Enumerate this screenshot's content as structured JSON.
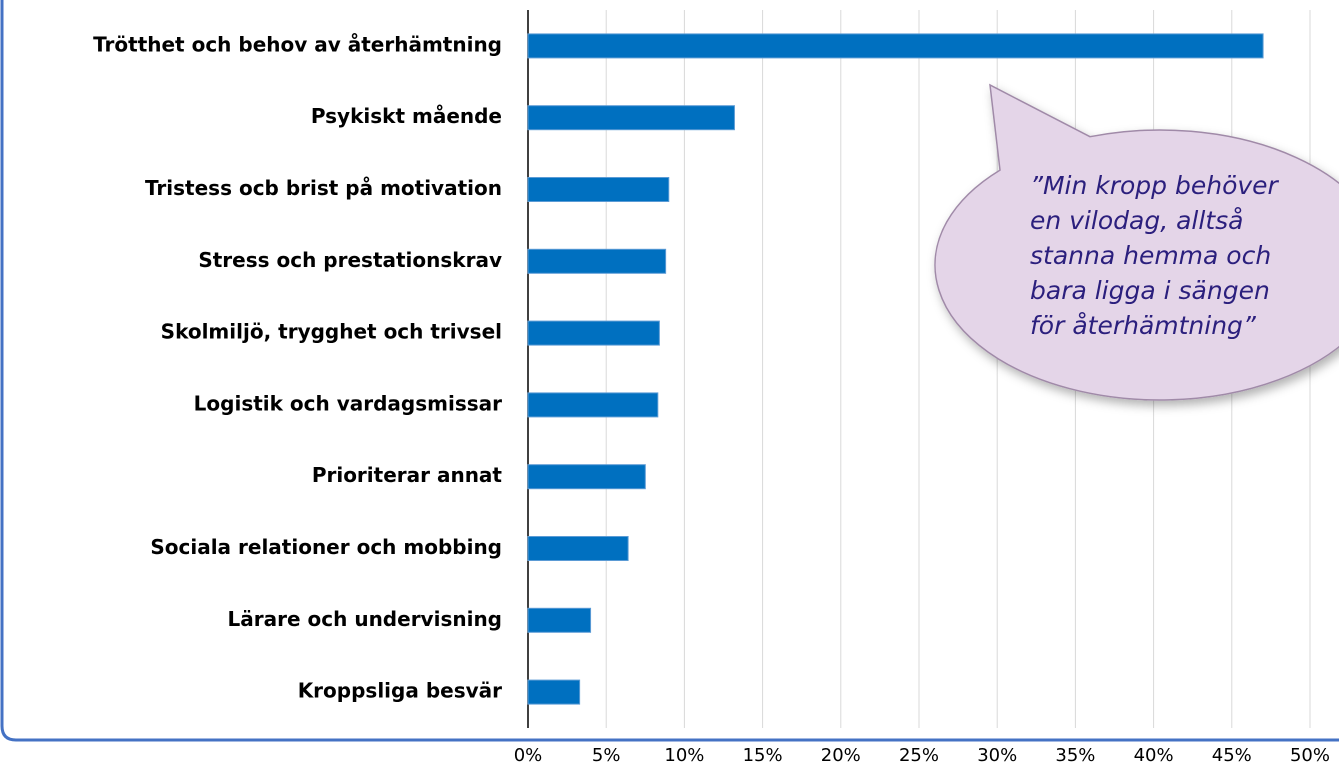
{
  "chart_data": {
    "type": "barh",
    "categories": [
      "Trötthet och behov av återhämtning",
      "Psykiskt mående",
      "Tristess ocb brist på motivation",
      "Stress och prestationskrav",
      "Skolmiljö, trygghet och trivsel",
      "Logistik och vardagsmissar",
      "Prioriterar annat",
      "Sociala relationer och mobbing",
      "Lärare och undervisning",
      "Kroppsliga besvär"
    ],
    "values": [
      47,
      13.2,
      9.0,
      8.8,
      8.4,
      8.3,
      7.5,
      6.4,
      4.0,
      3.3
    ],
    "color": "#0070c0",
    "xlim": [
      0,
      50
    ],
    "xticks": [
      {
        "value": 0,
        "label": "0%"
      },
      {
        "value": 5,
        "label": "5%"
      },
      {
        "value": 10,
        "label": "10%"
      },
      {
        "value": 15,
        "label": "15%"
      },
      {
        "value": 20,
        "label": "20%"
      },
      {
        "value": 25,
        "label": "25%"
      },
      {
        "value": 30,
        "label": "30%"
      },
      {
        "value": 35,
        "label": "35%"
      },
      {
        "value": 40,
        "label": "40%"
      },
      {
        "value": 45,
        "label": "45%"
      },
      {
        "value": 50,
        "label": "50%"
      }
    ],
    "grid": true,
    "annotation": [
      "”Min kropp behöver",
      "en vilodag, alltså",
      "stanna hemma och",
      "bara ligga i sängen",
      "för återhämtning”"
    ]
  }
}
